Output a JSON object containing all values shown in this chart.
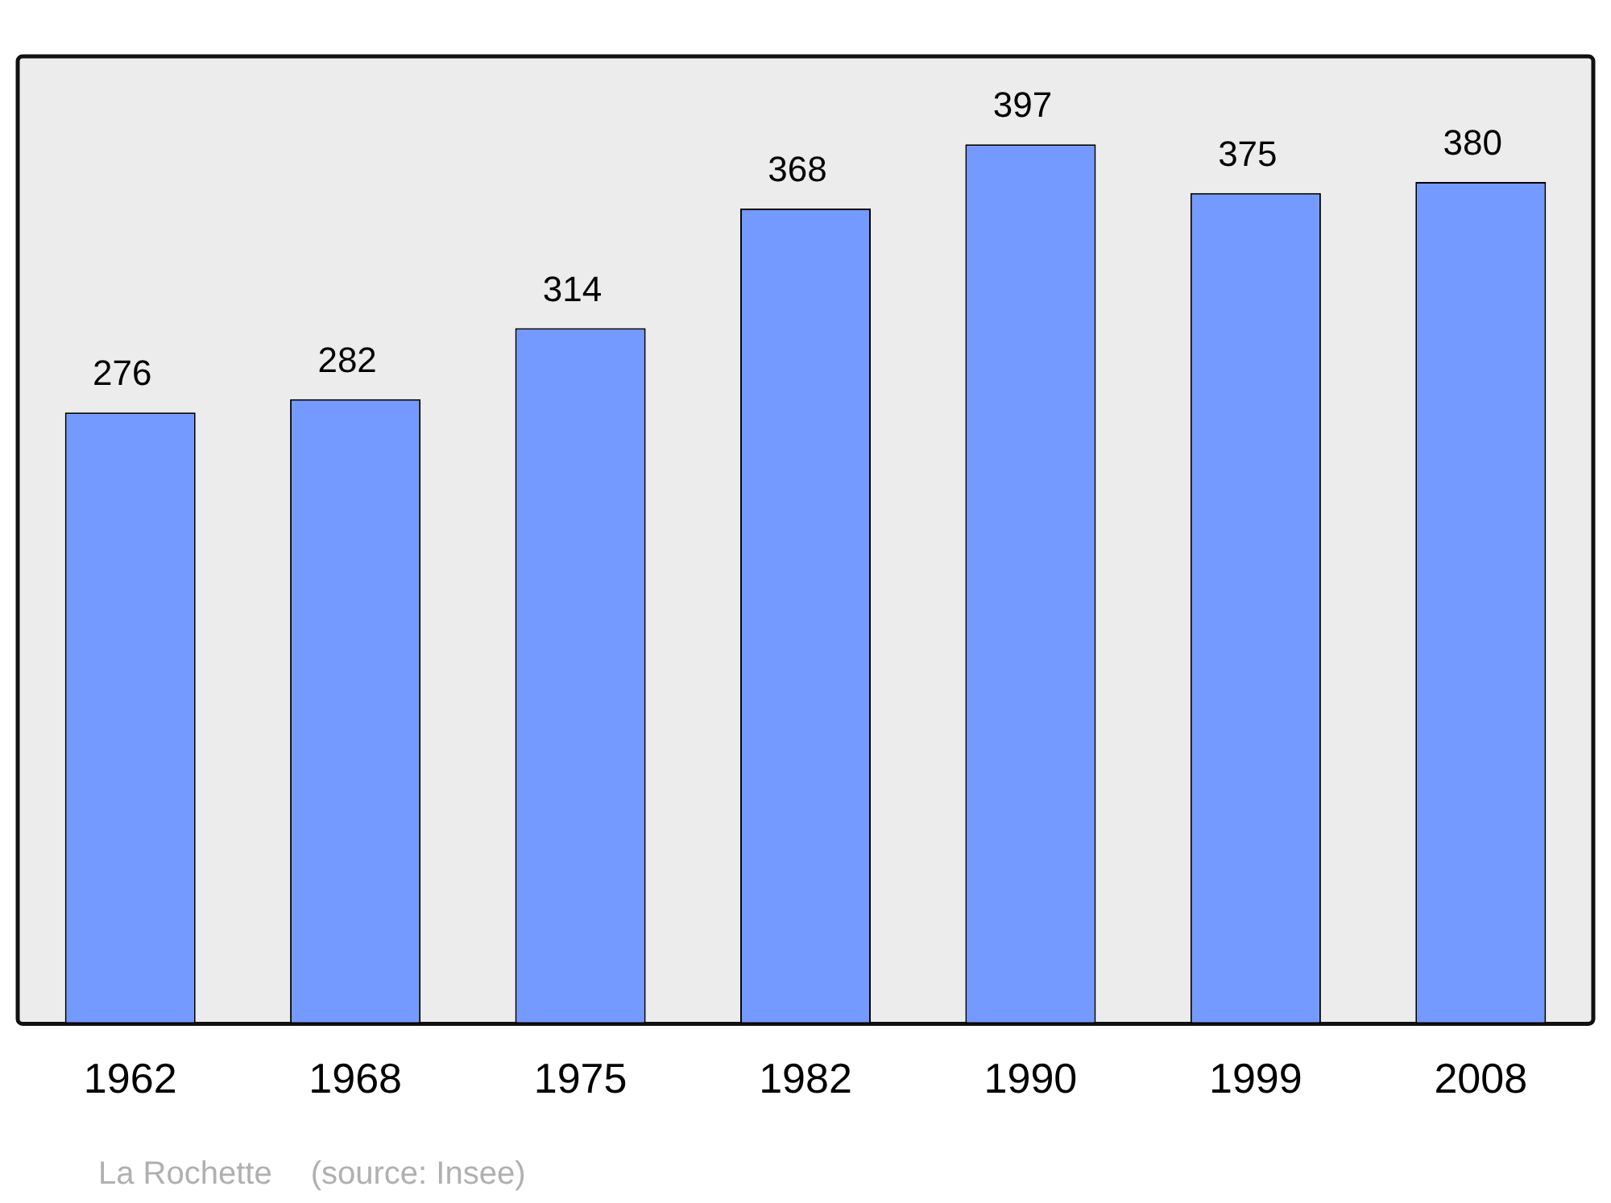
{
  "chart_data": {
    "type": "bar",
    "categories": [
      "1962",
      "1968",
      "1975",
      "1982",
      "1990",
      "1999",
      "2008"
    ],
    "values": [
      276,
      282,
      314,
      368,
      397,
      375,
      380
    ],
    "color": "#7499ff",
    "data_labels": true,
    "grid": false,
    "legend": false,
    "annotations": [
      "La Rochette",
      "(source: Insee)"
    ]
  }
}
